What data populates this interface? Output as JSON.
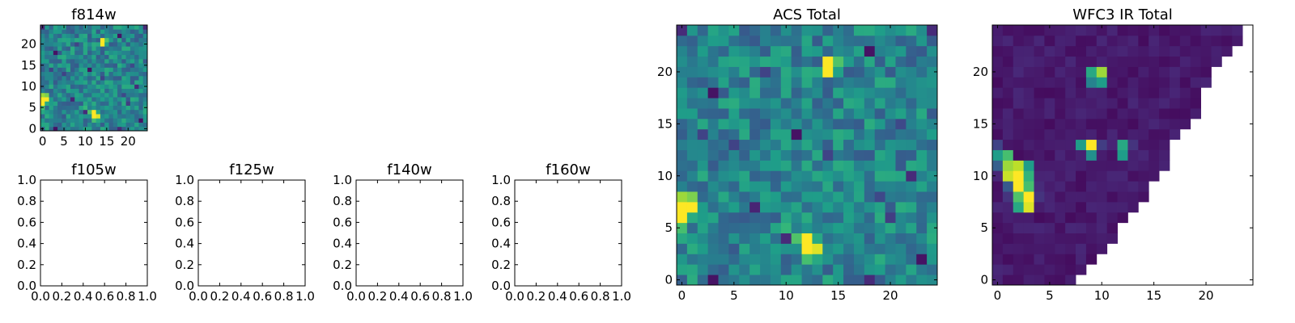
{
  "chart_data": [
    {
      "id": "f814w",
      "type": "heatmap",
      "title": "f814w",
      "colormap": "viridis",
      "grid_size": 25,
      "xlim": [
        -0.5,
        24.5
      ],
      "ylim": [
        -0.5,
        24.5
      ],
      "xticks": [
        0,
        5,
        10,
        15,
        20
      ],
      "xticklabels": [
        "0",
        "5",
        "10",
        "15",
        "20"
      ],
      "yticks": [
        0,
        5,
        10,
        15,
        20
      ],
      "yticklabels": [
        "0",
        "5",
        "10",
        "15",
        "20"
      ],
      "values_ref": "acs_total"
    },
    {
      "id": "f105w",
      "type": "empty",
      "title": "f105w",
      "xlim": [
        0,
        1
      ],
      "ylim": [
        0,
        1
      ],
      "xticklabels": [
        "0.0",
        "0.2",
        "0.4",
        "0.6",
        "0.8",
        "1.0"
      ],
      "yticklabels": [
        "0.0",
        "0.2",
        "0.4",
        "0.6",
        "0.8",
        "1.0"
      ]
    },
    {
      "id": "f125w",
      "type": "empty",
      "title": "f125w",
      "xlim": [
        0,
        1
      ],
      "ylim": [
        0,
        1
      ],
      "xticklabels": [
        "0.0",
        "0.2",
        "0.4",
        "0.6",
        "0.8",
        "1.0"
      ],
      "yticklabels": [
        "0.0",
        "0.2",
        "0.4",
        "0.6",
        "0.8",
        "1.0"
      ]
    },
    {
      "id": "f140w",
      "type": "empty",
      "title": "f140w",
      "xlim": [
        0,
        1
      ],
      "ylim": [
        0,
        1
      ],
      "xticklabels": [
        "0.0",
        "0.2",
        "0.4",
        "0.6",
        "0.8",
        "1.0"
      ],
      "yticklabels": [
        "0.0",
        "0.2",
        "0.4",
        "0.6",
        "0.8",
        "1.0"
      ]
    },
    {
      "id": "f160w",
      "type": "empty",
      "title": "f160w",
      "xlim": [
        0,
        1
      ],
      "ylim": [
        0,
        1
      ],
      "xticklabels": [
        "0.0",
        "0.2",
        "0.4",
        "0.6",
        "0.8",
        "1.0"
      ],
      "yticklabels": [
        "0.0",
        "0.2",
        "0.4",
        "0.6",
        "0.8",
        "1.0"
      ]
    },
    {
      "id": "acs_total",
      "type": "heatmap",
      "title": "ACS Total",
      "colormap": "viridis",
      "grid_size": 25,
      "xlim": [
        -0.5,
        24.5
      ],
      "ylim": [
        -0.5,
        24.5
      ],
      "xticks": [
        0,
        5,
        10,
        15,
        20
      ],
      "xticklabels": [
        "0",
        "5",
        "10",
        "15",
        "20"
      ],
      "yticks": [
        0,
        5,
        10,
        15,
        20
      ],
      "yticklabels": [
        "0",
        "5",
        "10",
        "15",
        "20"
      ],
      "background_level": 0.45,
      "cells": [
        {
          "x": 14,
          "y": 20,
          "v": 1.0
        },
        {
          "x": 14,
          "y": 21,
          "v": 1.0
        },
        {
          "x": 15,
          "y": 21,
          "v": 0.72
        },
        {
          "x": 13,
          "y": 20,
          "v": 0.6
        },
        {
          "x": 0,
          "y": 6,
          "v": 1.0
        },
        {
          "x": 0,
          "y": 7,
          "v": 1.0
        },
        {
          "x": 1,
          "y": 7,
          "v": 1.0
        },
        {
          "x": 1,
          "y": 8,
          "v": 0.8
        },
        {
          "x": 0,
          "y": 8,
          "v": 0.85
        },
        {
          "x": 0,
          "y": 5,
          "v": 0.7
        },
        {
          "x": 12,
          "y": 3,
          "v": 1.0
        },
        {
          "x": 12,
          "y": 4,
          "v": 1.0
        },
        {
          "x": 13,
          "y": 3,
          "v": 0.95
        },
        {
          "x": 11,
          "y": 4,
          "v": 0.72
        },
        {
          "x": 12,
          "y": 2,
          "v": 0.7
        },
        {
          "x": 10,
          "y": 5,
          "v": 0.66
        },
        {
          "x": 10,
          "y": 6,
          "v": 0.6
        },
        {
          "x": 13,
          "y": 4,
          "v": 0.6
        },
        {
          "x": 8,
          "y": 8,
          "v": 0.58
        },
        {
          "x": 9,
          "y": 8,
          "v": 0.55
        },
        {
          "x": 16,
          "y": 14,
          "v": 0.58
        },
        {
          "x": 17,
          "y": 17,
          "v": 0.58
        },
        {
          "x": 10,
          "y": 14,
          "v": 0.58
        },
        {
          "x": 9,
          "y": 21,
          "v": 0.58
        },
        {
          "x": 0,
          "y": 24,
          "v": 0.12
        },
        {
          "x": 24,
          "y": 24,
          "v": 0.12
        },
        {
          "x": 18,
          "y": 22,
          "v": 0.05
        },
        {
          "x": 3,
          "y": 18,
          "v": 0.05
        },
        {
          "x": 11,
          "y": 14,
          "v": 0.05
        },
        {
          "x": 3,
          "y": 0,
          "v": 0.05
        },
        {
          "x": 7,
          "y": 7,
          "v": 0.1
        },
        {
          "x": 18,
          "y": 0,
          "v": 0.12
        },
        {
          "x": 23,
          "y": 2,
          "v": 0.05
        },
        {
          "x": 22,
          "y": 10,
          "v": 0.12
        },
        {
          "x": 10,
          "y": 4,
          "v": 0.12
        },
        {
          "x": 14,
          "y": 12,
          "v": 0.2
        },
        {
          "x": 5,
          "y": 13,
          "v": 0.2
        },
        {
          "x": 2,
          "y": 14,
          "v": 0.2
        },
        {
          "x": 20,
          "y": 6,
          "v": 0.18
        },
        {
          "x": 8,
          "y": 20,
          "v": 0.2
        },
        {
          "x": 21,
          "y": 15,
          "v": 0.22
        },
        {
          "x": 19,
          "y": 8,
          "v": 0.22
        }
      ]
    },
    {
      "id": "wfc3_ir_total",
      "type": "heatmap",
      "title": "WFC3 IR Total",
      "colormap": "viridis",
      "grid_size": 25,
      "xlim": [
        -0.5,
        24.5
      ],
      "ylim": [
        -0.5,
        24.5
      ],
      "xticks": [
        0,
        5,
        10,
        15,
        20
      ],
      "xticklabels": [
        "0",
        "5",
        "10",
        "15",
        "20"
      ],
      "yticks": [
        0,
        5,
        10,
        15,
        20
      ],
      "yticklabels": [
        "0",
        "5",
        "10",
        "15",
        "20"
      ],
      "masked_region": "upper-right triangle (no data)",
      "row_extent": [
        8,
        9,
        10,
        11,
        12,
        12,
        13,
        14,
        15,
        15,
        16,
        17,
        17,
        17,
        18,
        19,
        20,
        20,
        20,
        21,
        21,
        22,
        23,
        24,
        24
      ],
      "background_level": 0.03,
      "cells": [
        {
          "x": 2,
          "y": 9,
          "v": 1.0
        },
        {
          "x": 2,
          "y": 10,
          "v": 1.0
        },
        {
          "x": 3,
          "y": 8,
          "v": 1.0
        },
        {
          "x": 3,
          "y": 7,
          "v": 0.95
        },
        {
          "x": 1,
          "y": 10,
          "v": 0.92
        },
        {
          "x": 2,
          "y": 11,
          "v": 0.9
        },
        {
          "x": 1,
          "y": 11,
          "v": 0.85
        },
        {
          "x": 0,
          "y": 12,
          "v": 0.55
        },
        {
          "x": 1,
          "y": 12,
          "v": 0.7
        },
        {
          "x": 3,
          "y": 10,
          "v": 0.65
        },
        {
          "x": 3,
          "y": 9,
          "v": 0.7
        },
        {
          "x": 2,
          "y": 8,
          "v": 0.72
        },
        {
          "x": 2,
          "y": 7,
          "v": 0.6
        },
        {
          "x": 3,
          "y": 11,
          "v": 0.55
        },
        {
          "x": 10,
          "y": 20,
          "v": 0.85
        },
        {
          "x": 9,
          "y": 20,
          "v": 0.6
        },
        {
          "x": 10,
          "y": 19,
          "v": 0.55
        },
        {
          "x": 9,
          "y": 19,
          "v": 0.45
        },
        {
          "x": 9,
          "y": 13,
          "v": 1.0
        },
        {
          "x": 8,
          "y": 13,
          "v": 0.55
        },
        {
          "x": 9,
          "y": 12,
          "v": 0.5
        },
        {
          "x": 12,
          "y": 13,
          "v": 0.6
        },
        {
          "x": 12,
          "y": 12,
          "v": 0.55
        },
        {
          "x": 0,
          "y": 11,
          "v": 0.3
        },
        {
          "x": 0,
          "y": 13,
          "v": 0.2
        },
        {
          "x": 1,
          "y": 9,
          "v": 0.28
        },
        {
          "x": 4,
          "y": 8,
          "v": 0.15
        },
        {
          "x": 4,
          "y": 9,
          "v": 0.12
        },
        {
          "x": 10,
          "y": 13,
          "v": 0.18
        },
        {
          "x": 13,
          "y": 13,
          "v": 0.15
        },
        {
          "x": 1,
          "y": 8,
          "v": 0.15
        }
      ]
    }
  ]
}
